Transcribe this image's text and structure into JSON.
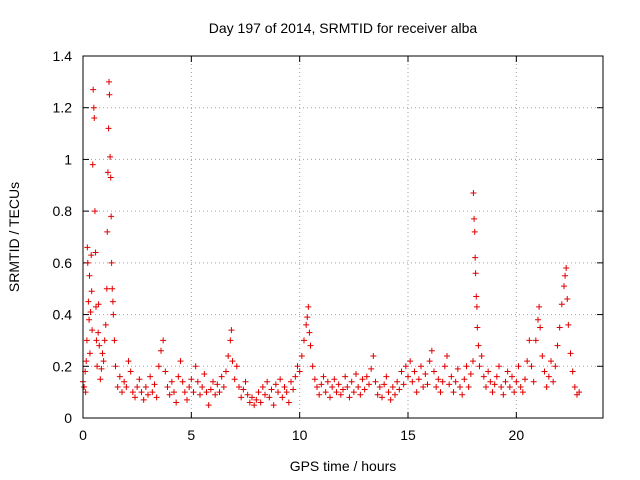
{
  "chart_data": {
    "type": "scatter",
    "title": "Day 197 of 2014, SRMTID for receiver alba",
    "xlabel": "GPS time / hours",
    "ylabel": "SRMTID / TECUs",
    "xlim": [
      0,
      24
    ],
    "ylim": [
      0,
      1.4
    ],
    "xticks": [
      0,
      5,
      10,
      15,
      20
    ],
    "xtick_labels": [
      "0",
      "5",
      "10",
      "15",
      "20"
    ],
    "yticks": [
      0,
      0.2,
      0.4,
      0.6,
      0.8,
      1.0,
      1.2,
      1.4
    ],
    "ytick_labels": [
      "0",
      "0.2",
      "0.4",
      "0.6",
      "0.8",
      "1",
      "1.2",
      "1.4"
    ],
    "grid": true,
    "marker": "+",
    "series_color": "#e00000",
    "series": [
      {
        "name": "SRMTID",
        "points": [
          [
            0.0,
            0.14
          ],
          [
            0.05,
            0.12
          ],
          [
            0.1,
            0.18
          ],
          [
            0.12,
            0.1
          ],
          [
            0.15,
            0.22
          ],
          [
            0.18,
            0.3
          ],
          [
            0.2,
            0.66
          ],
          [
            0.22,
            0.6
          ],
          [
            0.25,
            0.45
          ],
          [
            0.28,
            0.38
          ],
          [
            0.3,
            0.55
          ],
          [
            0.32,
            0.25
          ],
          [
            0.35,
            0.41
          ],
          [
            0.38,
            0.63
          ],
          [
            0.4,
            0.49
          ],
          [
            0.42,
            0.34
          ],
          [
            0.45,
            0.98
          ],
          [
            0.47,
            1.27
          ],
          [
            0.5,
            1.2
          ],
          [
            0.52,
            1.16
          ],
          [
            0.55,
            0.8
          ],
          [
            0.58,
            0.64
          ],
          [
            0.6,
            0.43
          ],
          [
            0.62,
            0.3
          ],
          [
            0.65,
            0.2
          ],
          [
            0.7,
            0.33
          ],
          [
            0.72,
            0.44
          ],
          [
            0.75,
            0.28
          ],
          [
            0.8,
            0.15
          ],
          [
            0.85,
            0.19
          ],
          [
            0.9,
            0.25
          ],
          [
            0.95,
            0.22
          ],
          [
            1.0,
            0.3
          ],
          [
            1.05,
            0.36
          ],
          [
            1.1,
            0.5
          ],
          [
            1.12,
            0.72
          ],
          [
            1.15,
            0.95
          ],
          [
            1.18,
            1.12
          ],
          [
            1.2,
            1.3
          ],
          [
            1.22,
            1.25
          ],
          [
            1.25,
            1.01
          ],
          [
            1.28,
            0.93
          ],
          [
            1.3,
            0.78
          ],
          [
            1.32,
            0.6
          ],
          [
            1.35,
            0.5
          ],
          [
            1.38,
            0.45
          ],
          [
            1.4,
            0.4
          ],
          [
            1.45,
            0.3
          ],
          [
            1.5,
            0.2
          ],
          [
            1.6,
            0.12
          ],
          [
            1.7,
            0.16
          ],
          [
            1.8,
            0.1
          ],
          [
            1.9,
            0.14
          ],
          [
            2.0,
            0.12
          ],
          [
            2.1,
            0.22
          ],
          [
            2.2,
            0.18
          ],
          [
            2.3,
            0.1
          ],
          [
            2.4,
            0.08
          ],
          [
            2.5,
            0.12
          ],
          [
            2.6,
            0.15
          ],
          [
            2.7,
            0.1
          ],
          [
            2.8,
            0.07
          ],
          [
            2.9,
            0.12
          ],
          [
            3.0,
            0.09
          ],
          [
            3.1,
            0.16
          ],
          [
            3.2,
            0.1
          ],
          [
            3.3,
            0.13
          ],
          [
            3.4,
            0.08
          ],
          [
            3.5,
            0.2
          ],
          [
            3.6,
            0.26
          ],
          [
            3.7,
            0.3
          ],
          [
            3.8,
            0.18
          ],
          [
            3.9,
            0.12
          ],
          [
            4.0,
            0.09
          ],
          [
            4.1,
            0.14
          ],
          [
            4.2,
            0.1
          ],
          [
            4.3,
            0.06
          ],
          [
            4.4,
            0.16
          ],
          [
            4.5,
            0.22
          ],
          [
            4.6,
            0.14
          ],
          [
            4.7,
            0.1
          ],
          [
            4.8,
            0.07
          ],
          [
            4.9,
            0.12
          ],
          [
            5.0,
            0.15
          ],
          [
            5.1,
            0.1
          ],
          [
            5.2,
            0.2
          ],
          [
            5.3,
            0.14
          ],
          [
            5.4,
            0.09
          ],
          [
            5.5,
            0.12
          ],
          [
            5.6,
            0.17
          ],
          [
            5.7,
            0.1
          ],
          [
            5.8,
            0.05
          ],
          [
            5.9,
            0.11
          ],
          [
            6.0,
            0.14
          ],
          [
            6.1,
            0.09
          ],
          [
            6.2,
            0.13
          ],
          [
            6.3,
            0.1
          ],
          [
            6.4,
            0.16
          ],
          [
            6.5,
            0.12
          ],
          [
            6.6,
            0.18
          ],
          [
            6.7,
            0.24
          ],
          [
            6.8,
            0.3
          ],
          [
            6.85,
            0.34
          ],
          [
            6.9,
            0.22
          ],
          [
            7.0,
            0.15
          ],
          [
            7.1,
            0.2
          ],
          [
            7.2,
            0.12
          ],
          [
            7.3,
            0.08
          ],
          [
            7.4,
            0.11
          ],
          [
            7.5,
            0.14
          ],
          [
            7.6,
            0.09
          ],
          [
            7.7,
            0.06
          ],
          [
            7.8,
            0.08
          ],
          [
            7.9,
            0.05
          ],
          [
            8.0,
            0.07
          ],
          [
            8.1,
            0.1
          ],
          [
            8.2,
            0.06
          ],
          [
            8.3,
            0.12
          ],
          [
            8.4,
            0.09
          ],
          [
            8.5,
            0.14
          ],
          [
            8.6,
            0.08
          ],
          [
            8.7,
            0.11
          ],
          [
            8.8,
            0.05
          ],
          [
            8.9,
            0.13
          ],
          [
            9.0,
            0.1
          ],
          [
            9.1,
            0.15
          ],
          [
            9.2,
            0.08
          ],
          [
            9.3,
            0.12
          ],
          [
            9.4,
            0.1
          ],
          [
            9.5,
            0.06
          ],
          [
            9.6,
            0.14
          ],
          [
            9.7,
            0.11
          ],
          [
            9.8,
            0.16
          ],
          [
            9.9,
            0.2
          ],
          [
            10.0,
            0.18
          ],
          [
            10.1,
            0.24
          ],
          [
            10.2,
            0.3
          ],
          [
            10.3,
            0.36
          ],
          [
            10.35,
            0.39
          ],
          [
            10.4,
            0.43
          ],
          [
            10.45,
            0.33
          ],
          [
            10.5,
            0.28
          ],
          [
            10.6,
            0.2
          ],
          [
            10.7,
            0.15
          ],
          [
            10.8,
            0.12
          ],
          [
            10.9,
            0.09
          ],
          [
            11.0,
            0.13
          ],
          [
            11.1,
            0.16
          ],
          [
            11.2,
            0.1
          ],
          [
            11.3,
            0.14
          ],
          [
            11.4,
            0.08
          ],
          [
            11.5,
            0.12
          ],
          [
            11.6,
            0.15
          ],
          [
            11.7,
            0.1
          ],
          [
            11.8,
            0.13
          ],
          [
            11.9,
            0.09
          ],
          [
            12.0,
            0.11
          ],
          [
            12.1,
            0.16
          ],
          [
            12.2,
            0.12
          ],
          [
            12.3,
            0.08
          ],
          [
            12.4,
            0.14
          ],
          [
            12.5,
            0.1
          ],
          [
            12.6,
            0.17
          ],
          [
            12.7,
            0.12
          ],
          [
            12.8,
            0.09
          ],
          [
            12.9,
            0.15
          ],
          [
            13.0,
            0.11
          ],
          [
            13.1,
            0.16
          ],
          [
            13.2,
            0.13
          ],
          [
            13.3,
            0.19
          ],
          [
            13.4,
            0.24
          ],
          [
            13.5,
            0.14
          ],
          [
            13.6,
            0.09
          ],
          [
            13.7,
            0.12
          ],
          [
            13.8,
            0.08
          ],
          [
            13.9,
            0.13
          ],
          [
            14.0,
            0.16
          ],
          [
            14.1,
            0.1
          ],
          [
            14.2,
            0.07
          ],
          [
            14.3,
            0.12
          ],
          [
            14.4,
            0.09
          ],
          [
            14.5,
            0.14
          ],
          [
            14.6,
            0.11
          ],
          [
            14.7,
            0.18
          ],
          [
            14.8,
            0.13
          ],
          [
            14.9,
            0.2
          ],
          [
            15.0,
            0.16
          ],
          [
            15.1,
            0.22
          ],
          [
            15.2,
            0.14
          ],
          [
            15.3,
            0.18
          ],
          [
            15.4,
            0.1
          ],
          [
            15.5,
            0.15
          ],
          [
            15.6,
            0.2
          ],
          [
            15.7,
            0.12
          ],
          [
            15.8,
            0.17
          ],
          [
            15.9,
            0.13
          ],
          [
            16.0,
            0.22
          ],
          [
            16.1,
            0.26
          ],
          [
            16.2,
            0.18
          ],
          [
            16.3,
            0.12
          ],
          [
            16.4,
            0.15
          ],
          [
            16.5,
            0.1
          ],
          [
            16.6,
            0.14
          ],
          [
            16.7,
            0.2
          ],
          [
            16.8,
            0.24
          ],
          [
            16.9,
            0.13
          ],
          [
            17.0,
            0.16
          ],
          [
            17.1,
            0.1
          ],
          [
            17.2,
            0.14
          ],
          [
            17.3,
            0.19
          ],
          [
            17.4,
            0.12
          ],
          [
            17.5,
            0.09
          ],
          [
            17.6,
            0.15
          ],
          [
            17.7,
            0.2
          ],
          [
            17.8,
            0.12
          ],
          [
            17.9,
            0.17
          ],
          [
            18.0,
            0.22
          ],
          [
            18.02,
            0.87
          ],
          [
            18.05,
            0.77
          ],
          [
            18.08,
            0.72
          ],
          [
            18.1,
            0.62
          ],
          [
            18.12,
            0.56
          ],
          [
            18.15,
            0.47
          ],
          [
            18.18,
            0.43
          ],
          [
            18.2,
            0.35
          ],
          [
            18.25,
            0.28
          ],
          [
            18.3,
            0.2
          ],
          [
            18.4,
            0.24
          ],
          [
            18.5,
            0.16
          ],
          [
            18.6,
            0.12
          ],
          [
            18.7,
            0.18
          ],
          [
            18.8,
            0.14
          ],
          [
            18.9,
            0.1
          ],
          [
            19.0,
            0.13
          ],
          [
            19.1,
            0.16
          ],
          [
            19.2,
            0.2
          ],
          [
            19.3,
            0.12
          ],
          [
            19.4,
            0.09
          ],
          [
            19.5,
            0.14
          ],
          [
            19.6,
            0.18
          ],
          [
            19.7,
            0.12
          ],
          [
            19.8,
            0.16
          ],
          [
            19.9,
            0.1
          ],
          [
            20.0,
            0.14
          ],
          [
            20.1,
            0.2
          ],
          [
            20.2,
            0.12
          ],
          [
            20.3,
            0.1
          ],
          [
            20.4,
            0.15
          ],
          [
            20.5,
            0.22
          ],
          [
            20.6,
            0.3
          ],
          [
            20.7,
            0.2
          ],
          [
            20.8,
            0.14
          ],
          [
            20.9,
            0.3
          ],
          [
            21.0,
            0.38
          ],
          [
            21.05,
            0.43
          ],
          [
            21.1,
            0.35
          ],
          [
            21.2,
            0.24
          ],
          [
            21.3,
            0.18
          ],
          [
            21.4,
            0.12
          ],
          [
            21.5,
            0.16
          ],
          [
            21.6,
            0.22
          ],
          [
            21.7,
            0.14
          ],
          [
            21.8,
            0.2
          ],
          [
            21.9,
            0.28
          ],
          [
            22.0,
            0.35
          ],
          [
            22.1,
            0.44
          ],
          [
            22.2,
            0.51
          ],
          [
            22.25,
            0.55
          ],
          [
            22.3,
            0.58
          ],
          [
            22.35,
            0.46
          ],
          [
            22.4,
            0.36
          ],
          [
            22.5,
            0.25
          ],
          [
            22.6,
            0.18
          ],
          [
            22.7,
            0.12
          ],
          [
            22.8,
            0.09
          ],
          [
            22.9,
            0.1
          ]
        ]
      }
    ]
  }
}
